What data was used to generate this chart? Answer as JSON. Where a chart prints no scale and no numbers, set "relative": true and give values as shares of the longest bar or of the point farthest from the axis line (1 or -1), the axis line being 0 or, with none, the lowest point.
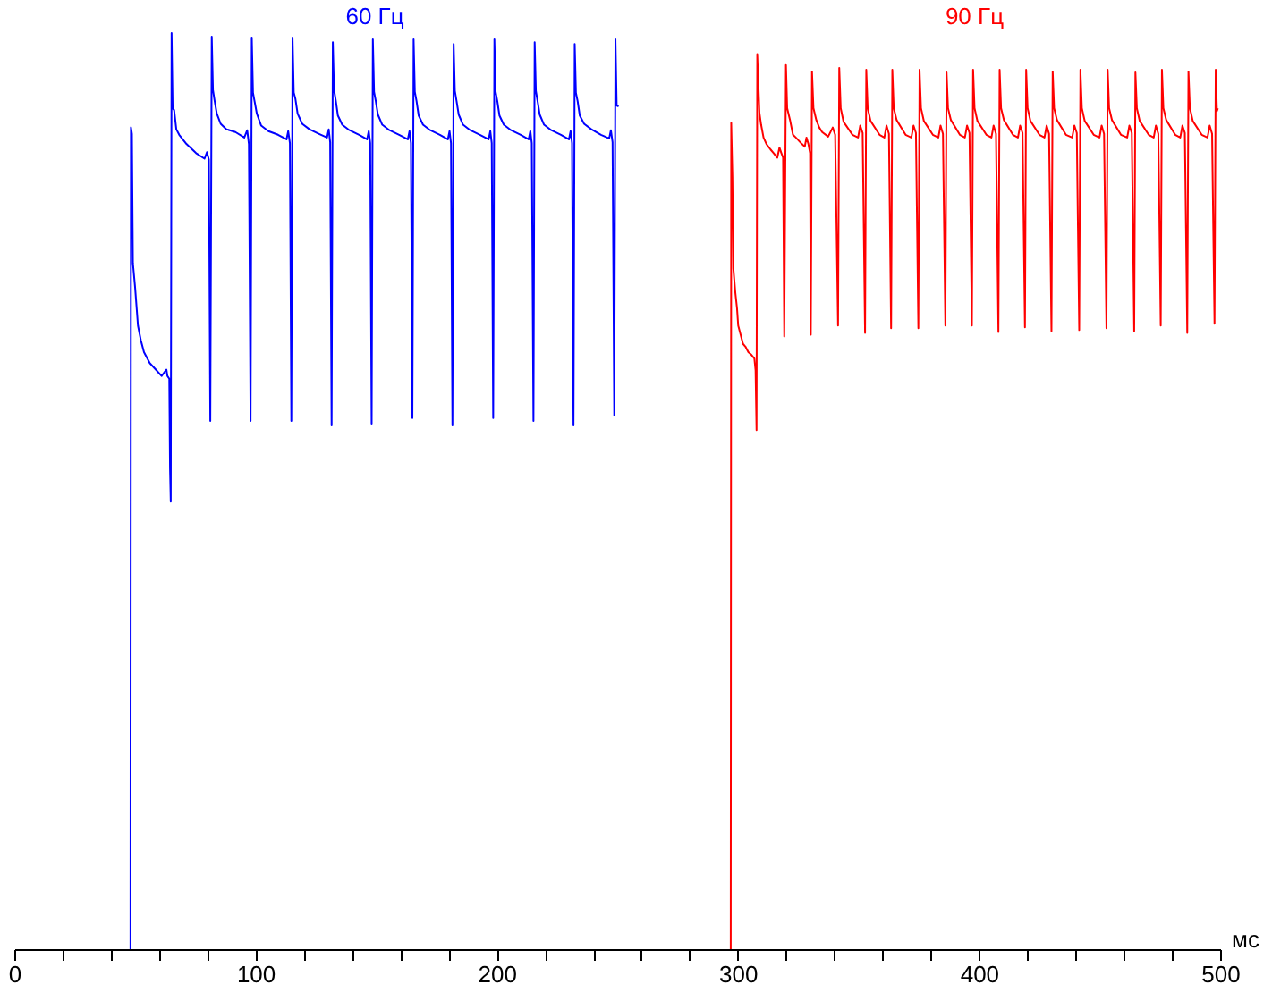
{
  "chart_data": {
    "type": "line",
    "relative": true,
    "xlabel": "мс",
    "xlim": [
      0,
      500
    ],
    "xticks": [
      0,
      {
        "value": 20,
        "label": null
      },
      {
        "value": 40,
        "label": null
      },
      {
        "value": 60,
        "label": null
      },
      {
        "value": 80,
        "label": null
      },
      100,
      {
        "value": 120,
        "label": null
      },
      {
        "value": 140,
        "label": null
      },
      {
        "value": 160,
        "label": null
      },
      {
        "value": 180,
        "label": null
      },
      200,
      {
        "value": 220,
        "label": null
      },
      {
        "value": 240,
        "label": null
      },
      {
        "value": 260,
        "label": null
      },
      {
        "value": 280,
        "label": null
      },
      300,
      {
        "value": 320,
        "label": null
      },
      {
        "value": 340,
        "label": null
      },
      {
        "value": 360,
        "label": null
      },
      {
        "value": 380,
        "label": null
      },
      400,
      {
        "value": 420,
        "label": null
      },
      {
        "value": 440,
        "label": null
      },
      {
        "value": 460,
        "label": null
      },
      {
        "value": 480,
        "label": null
      },
      500
    ],
    "series": [
      {
        "name": "60 Гц",
        "color": "#0000ff",
        "x": [
          0,
          47.8,
          48.0,
          48.4,
          48.8,
          49.7,
          50.9,
          52.1,
          53.4,
          55.8,
          58.3,
          60.7,
          62.7,
          63.1,
          63.9,
          64.2,
          64.5,
          64.85,
          65.3,
          65.9,
          66.8,
          68,
          71,
          75,
          78.5,
          79.5,
          80.3,
          80.9,
          81.5,
          82.0,
          82.7,
          83.6,
          85.2,
          87.6,
          91.3,
          95.0,
          96.2,
          96.9,
          97.6,
          98.1,
          98.6,
          99.3,
          100.2,
          102,
          105,
          109,
          112.5,
          113.2,
          113.9,
          114.5,
          115.0,
          115.5,
          116.2,
          117.1,
          119,
          122,
          126,
          129.3,
          130.0,
          130.6,
          131.2,
          131.7,
          132.2,
          132.9,
          133.8,
          135.6,
          138.6,
          142.6,
          145.9,
          146.6,
          147.2,
          147.8,
          148.3,
          148.8,
          149.5,
          150.4,
          152.2,
          155.2,
          159.2,
          162.8,
          163.5,
          164.1,
          164.7,
          165.2,
          165.7,
          166.4,
          167.3,
          169.1,
          172.1,
          176.1,
          179.4,
          180.1,
          180.7,
          181.3,
          181.8,
          182.3,
          183.0,
          183.9,
          185.7,
          188.7,
          192.7,
          196.3,
          197.0,
          197.6,
          198.2,
          198.7,
          199.2,
          199.9,
          200.8,
          202.6,
          205.6,
          209.6,
          212.9,
          213.6,
          214.2,
          214.9,
          215.4,
          215.9,
          216.6,
          217.5,
          219.3,
          222.3,
          226.3,
          229.6,
          230.3,
          230.9,
          231.5,
          232.0,
          232.5,
          233.2,
          234.1,
          235.9,
          238.9,
          242.9,
          246.3,
          247.0,
          247.7,
          248.4,
          248.9,
          249.4,
          250.2
        ],
        "values": [
          0,
          0,
          0.897,
          0.89,
          0.749,
          0.723,
          0.681,
          0.665,
          0.652,
          0.64,
          0.633,
          0.626,
          0.633,
          0.626,
          0.623,
          0.525,
          0.489,
          1.0,
          0.918,
          0.916,
          0.895,
          0.889,
          0.879,
          0.869,
          0.863,
          0.87,
          0.862,
          0.577,
          0.996,
          0.938,
          0.926,
          0.912,
          0.901,
          0.895,
          0.892,
          0.886,
          0.894,
          0.879,
          0.577,
          0.995,
          0.935,
          0.925,
          0.912,
          0.899,
          0.893,
          0.889,
          0.884,
          0.893,
          0.88,
          0.577,
          0.995,
          0.935,
          0.928,
          0.912,
          0.901,
          0.895,
          0.89,
          0.886,
          0.895,
          0.881,
          0.572,
          0.99,
          0.938,
          0.927,
          0.91,
          0.9,
          0.894,
          0.889,
          0.884,
          0.893,
          0.88,
          0.574,
          0.993,
          0.936,
          0.926,
          0.911,
          0.9,
          0.894,
          0.889,
          0.884,
          0.893,
          0.88,
          0.58,
          0.993,
          0.936,
          0.926,
          0.91,
          0.9,
          0.894,
          0.889,
          0.884,
          0.893,
          0.88,
          0.572,
          0.988,
          0.937,
          0.926,
          0.911,
          0.9,
          0.894,
          0.889,
          0.884,
          0.893,
          0.88,
          0.58,
          0.993,
          0.936,
          0.926,
          0.91,
          0.9,
          0.894,
          0.889,
          0.884,
          0.893,
          0.88,
          0.577,
          0.99,
          0.937,
          0.926,
          0.911,
          0.9,
          0.894,
          0.889,
          0.884,
          0.893,
          0.88,
          0.572,
          0.988,
          0.935,
          0.926,
          0.91,
          0.901,
          0.895,
          0.889,
          0.885,
          0.894,
          0.881,
          0.583,
          0.993,
          0.921,
          0.92
        ]
      },
      {
        "name": "90 Гц",
        "color": "#ff0000",
        "x": [
          250,
          296.7,
          296.9,
          297.4,
          297.8,
          298.6,
          299.3,
          299.8,
          300.8,
          301.8,
          302.8,
          304.0,
          305.3,
          306.5,
          307.0,
          307.4,
          307.7,
          308.6,
          309.3,
          310.3,
          311.5,
          313.2,
          314.5,
          316.0,
          316.9,
          317.7,
          318.4,
          318.9,
          319.6,
          320.1,
          321.3,
          322.5,
          323.7,
          326.2,
          327.4,
          328.1,
          328.9,
          329.6,
          329.9,
          330.4,
          331.0,
          332.2,
          333.4,
          334.6,
          337.1,
          339.0,
          340.0,
          341.2,
          341.7,
          342.3,
          343.5,
          347.2,
          349.5,
          350.4,
          351.4,
          352.4,
          352.9,
          353.5,
          354.7,
          358.4,
          360.4,
          361.3,
          362.3,
          363.2,
          363.7,
          364.3,
          365.5,
          369.2,
          371.6,
          372.5,
          373.5,
          374.5,
          375.0,
          375.6,
          376.8,
          380.5,
          382.8,
          383.7,
          384.7,
          385.7,
          386.2,
          386.8,
          388.0,
          391.7,
          393.8,
          394.7,
          395.7,
          396.7,
          397.2,
          397.8,
          399.0,
          402.7,
          404.8,
          405.7,
          406.7,
          407.7,
          408.2,
          408.8,
          410.0,
          413.7,
          415.8,
          416.7,
          417.7,
          418.7,
          419.2,
          419.8,
          421.0,
          424.7,
          426.8,
          427.7,
          428.7,
          429.7,
          430.2,
          430.8,
          432.0,
          435.7,
          438.3,
          439.2,
          440.2,
          441.2,
          441.7,
          442.3,
          443.5,
          447.2,
          449.6,
          450.5,
          451.5,
          452.5,
          453.0,
          453.6,
          454.8,
          458.5,
          461.1,
          462.0,
          463.0,
          464.0,
          464.5,
          465.1,
          466.3,
          470.0,
          472.1,
          473.0,
          474.0,
          475.0,
          475.5,
          476.1,
          477.3,
          481.0,
          483.1,
          484.0,
          485.0,
          486.0,
          486.5,
          487.1,
          488.3,
          492.0,
          494.4,
          495.3,
          496.3,
          497.3,
          497.8,
          498.3,
          498.7
        ],
        "values": [
          0,
          0,
          0.902,
          0.843,
          0.743,
          0.717,
          0.7,
          0.681,
          0.671,
          0.661,
          0.658,
          0.652,
          0.649,
          0.645,
          0.632,
          0.567,
          0.977,
          0.913,
          0.9,
          0.886,
          0.879,
          0.873,
          0.869,
          0.864,
          0.875,
          0.869,
          0.864,
          0.669,
          0.965,
          0.918,
          0.905,
          0.889,
          0.886,
          0.879,
          0.876,
          0.886,
          0.879,
          0.869,
          0.671,
          0.958,
          0.918,
          0.905,
          0.897,
          0.892,
          0.887,
          0.897,
          0.889,
          0.681,
          0.962,
          0.918,
          0.903,
          0.889,
          0.886,
          0.899,
          0.891,
          0.673,
          0.96,
          0.918,
          0.904,
          0.889,
          0.886,
          0.899,
          0.89,
          0.678,
          0.96,
          0.918,
          0.905,
          0.889,
          0.886,
          0.899,
          0.891,
          0.678,
          0.96,
          0.918,
          0.904,
          0.889,
          0.886,
          0.899,
          0.89,
          0.681,
          0.957,
          0.918,
          0.905,
          0.889,
          0.886,
          0.899,
          0.891,
          0.681,
          0.96,
          0.918,
          0.904,
          0.889,
          0.886,
          0.899,
          0.89,
          0.674,
          0.96,
          0.918,
          0.905,
          0.889,
          0.886,
          0.899,
          0.891,
          0.679,
          0.96,
          0.918,
          0.904,
          0.889,
          0.886,
          0.899,
          0.89,
          0.675,
          0.958,
          0.918,
          0.905,
          0.889,
          0.886,
          0.899,
          0.891,
          0.676,
          0.96,
          0.918,
          0.904,
          0.889,
          0.886,
          0.899,
          0.89,
          0.678,
          0.96,
          0.918,
          0.905,
          0.889,
          0.886,
          0.899,
          0.891,
          0.675,
          0.957,
          0.918,
          0.904,
          0.889,
          0.886,
          0.899,
          0.89,
          0.681,
          0.96,
          0.918,
          0.905,
          0.889,
          0.886,
          0.899,
          0.891,
          0.673,
          0.958,
          0.918,
          0.904,
          0.889,
          0.886,
          0.899,
          0.89,
          0.683,
          0.96,
          0.915,
          0.918
        ]
      }
    ]
  }
}
